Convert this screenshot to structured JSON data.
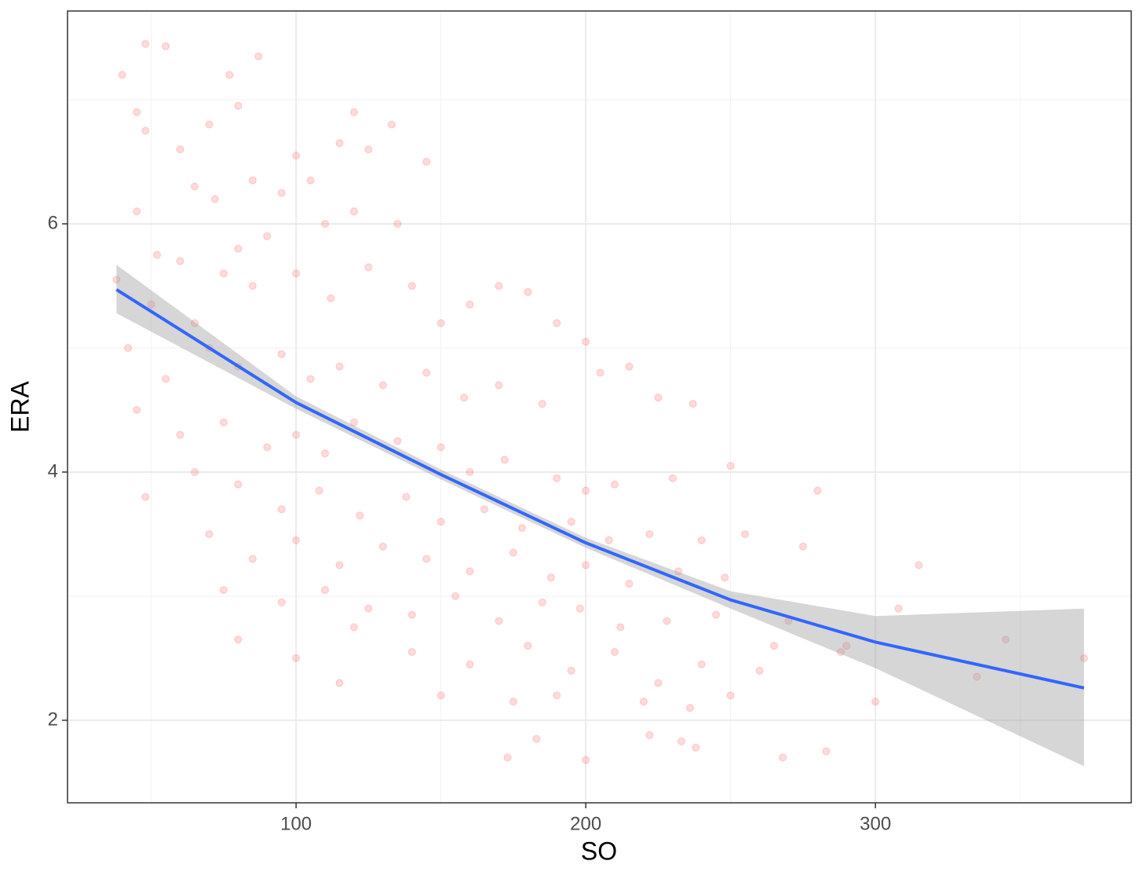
{
  "chart_data": {
    "type": "scatter",
    "x_label": "SO",
    "y_label": "ERA",
    "xlim": [
      21.1,
      388.3
    ],
    "ylim": [
      1.335,
      7.715
    ],
    "xticks": [
      100,
      200,
      300
    ],
    "yticks": [
      2,
      4,
      6
    ],
    "x_minor_ticks": [
      50,
      150,
      250,
      350
    ],
    "y_minor_ticks": [
      3,
      5,
      7
    ],
    "grid": true,
    "series": [
      {
        "color": "#ff0000",
        "opacity": 0.14,
        "x": [
          40,
          48,
          55,
          87,
          77,
          45,
          48,
          120,
          133,
          145,
          100,
          60,
          70,
          80,
          115,
          125,
          45,
          65,
          72,
          85,
          95,
          105,
          110,
          120,
          135,
          90,
          80,
          75,
          60,
          52,
          38,
          50,
          65,
          85,
          100,
          112,
          125,
          140,
          150,
          160,
          170,
          180,
          190,
          200,
          42,
          55,
          70,
          80,
          95,
          105,
          115,
          130,
          145,
          158,
          170,
          185,
          205,
          215,
          225,
          237,
          45,
          60,
          75,
          90,
          100,
          110,
          120,
          135,
          150,
          160,
          172,
          190,
          200,
          210,
          230,
          250,
          48,
          65,
          80,
          95,
          108,
          122,
          138,
          150,
          165,
          178,
          195,
          208,
          222,
          240,
          255,
          70,
          85,
          100,
          115,
          130,
          145,
          160,
          175,
          188,
          200,
          215,
          232,
          248,
          275,
          315,
          75,
          95,
          110,
          125,
          140,
          155,
          170,
          185,
          198,
          212,
          228,
          245,
          270,
          290,
          308,
          80,
          100,
          120,
          140,
          160,
          180,
          195,
          210,
          225,
          240,
          260,
          288,
          345,
          372,
          115,
          150,
          175,
          190,
          220,
          236,
          250,
          300,
          335,
          183,
          173,
          200,
          222,
          233,
          238,
          268,
          283,
          280,
          265
        ],
        "values": [
          7.2,
          7.45,
          7.43,
          7.35,
          7.2,
          6.9,
          6.75,
          6.9,
          6.8,
          6.5,
          6.55,
          6.6,
          6.8,
          6.95,
          6.65,
          6.6,
          6.1,
          6.3,
          6.2,
          6.35,
          6.25,
          6.35,
          6.0,
          6.1,
          6.0,
          5.9,
          5.8,
          5.6,
          5.7,
          5.75,
          5.55,
          5.35,
          5.2,
          5.5,
          5.6,
          5.4,
          5.65,
          5.5,
          5.2,
          5.35,
          5.5,
          5.45,
          5.2,
          5.05,
          5.0,
          4.75,
          5.0,
          4.85,
          4.95,
          4.75,
          4.85,
          4.7,
          4.8,
          4.6,
          4.7,
          4.55,
          4.8,
          4.85,
          4.6,
          4.55,
          4.5,
          4.3,
          4.4,
          4.2,
          4.3,
          4.15,
          4.4,
          4.25,
          4.2,
          4.0,
          4.1,
          3.95,
          3.85,
          3.9,
          3.95,
          4.05,
          3.8,
          4.0,
          3.9,
          3.7,
          3.85,
          3.65,
          3.8,
          3.6,
          3.7,
          3.55,
          3.6,
          3.45,
          3.5,
          3.45,
          3.5,
          3.5,
          3.3,
          3.45,
          3.25,
          3.4,
          3.3,
          3.2,
          3.35,
          3.15,
          3.25,
          3.1,
          3.2,
          3.15,
          3.4,
          3.25,
          3.05,
          2.95,
          3.05,
          2.9,
          2.85,
          3.0,
          2.8,
          2.95,
          2.9,
          2.75,
          2.8,
          2.85,
          2.8,
          2.6,
          2.9,
          2.65,
          2.5,
          2.75,
          2.55,
          2.45,
          2.6,
          2.4,
          2.55,
          2.3,
          2.45,
          2.4,
          2.55,
          2.65,
          2.5,
          2.3,
          2.2,
          2.15,
          2.2,
          2.15,
          2.1,
          2.2,
          2.15,
          2.35,
          1.85,
          1.7,
          1.68,
          1.88,
          1.83,
          1.78,
          1.7,
          1.75,
          3.85,
          2.6
        ]
      }
    ],
    "smooth": {
      "color": "#3366ff",
      "band_color": "#999999",
      "x": [
        38,
        100,
        150,
        200,
        250,
        300,
        372
      ],
      "values": [
        5.47,
        4.56,
        3.98,
        3.43,
        2.97,
        2.63,
        2.26
      ],
      "upper": [
        5.67,
        4.61,
        4.02,
        3.47,
        3.04,
        2.84,
        2.9
      ],
      "lower": [
        5.28,
        4.51,
        3.94,
        3.39,
        2.9,
        2.42,
        1.63
      ]
    }
  }
}
